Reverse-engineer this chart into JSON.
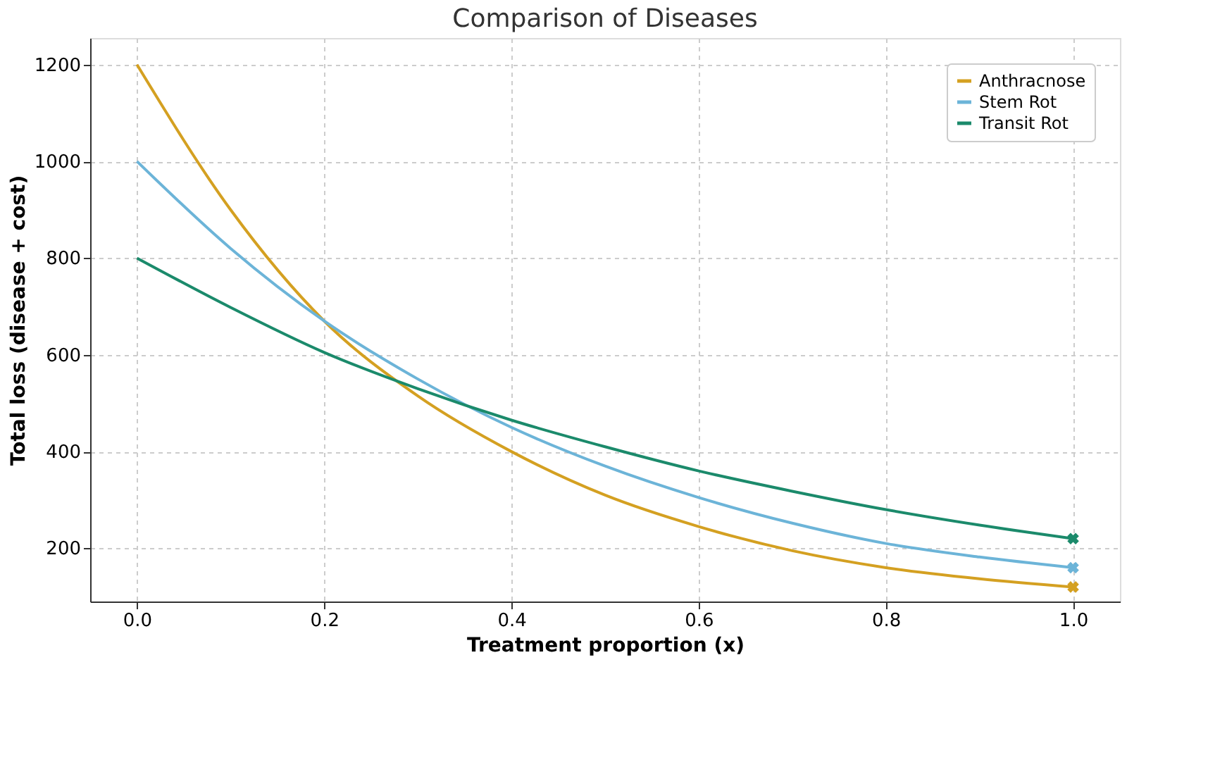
{
  "chart_data": {
    "type": "line",
    "title": "Comparison of Diseases",
    "xlabel": "Treatment proportion (x)",
    "ylabel": "Total loss (disease + cost)",
    "x": [
      0,
      0.1,
      0.2,
      0.3,
      0.4,
      0.5,
      0.6,
      0.7,
      0.8,
      0.9,
      1.0
    ],
    "series": [
      {
        "name": "Anthracnose",
        "color": "#d4a021",
        "values": [
          1200,
          900,
          670,
          515,
          400,
          310,
          245,
          195,
          160,
          137,
          120
        ]
      },
      {
        "name": "Stem Rot",
        "color": "#6cb4d8",
        "values": [
          1000,
          820,
          670,
          550,
          450,
          370,
          305,
          252,
          210,
          182,
          160
        ]
      },
      {
        "name": "Transit Rot",
        "color": "#1b8a6b",
        "values": [
          800,
          698,
          605,
          530,
          465,
          410,
          360,
          318,
          280,
          248,
          220
        ]
      },
      {
        "type": "scatter",
        "marker": "cross",
        "color": "#d4a021",
        "values": [
          null,
          null,
          null,
          null,
          null,
          null,
          null,
          null,
          null,
          null,
          120
        ]
      },
      {
        "type": "scatter",
        "marker": "cross",
        "color": "#6cb4d8",
        "values": [
          null,
          null,
          null,
          null,
          null,
          null,
          null,
          null,
          null,
          null,
          160
        ]
      },
      {
        "type": "scatter",
        "marker": "cross",
        "color": "#1b8a6b",
        "values": [
          null,
          null,
          null,
          null,
          null,
          null,
          null,
          null,
          null,
          null,
          220
        ]
      }
    ],
    "xlim": [
      -0.05,
      1.05
    ],
    "xticks": [
      {
        "value": 0,
        "label": "0.0"
      },
      0.2,
      0.4,
      0.6,
      0.8,
      {
        "value": 1,
        "label": "1.0"
      }
    ],
    "ylim": [
      90,
      1255
    ],
    "yticks": [
      200,
      400,
      600,
      800,
      1000,
      1200
    ],
    "grid": true,
    "legend": "top right",
    "marker": "none",
    "line_style": "solid"
  }
}
